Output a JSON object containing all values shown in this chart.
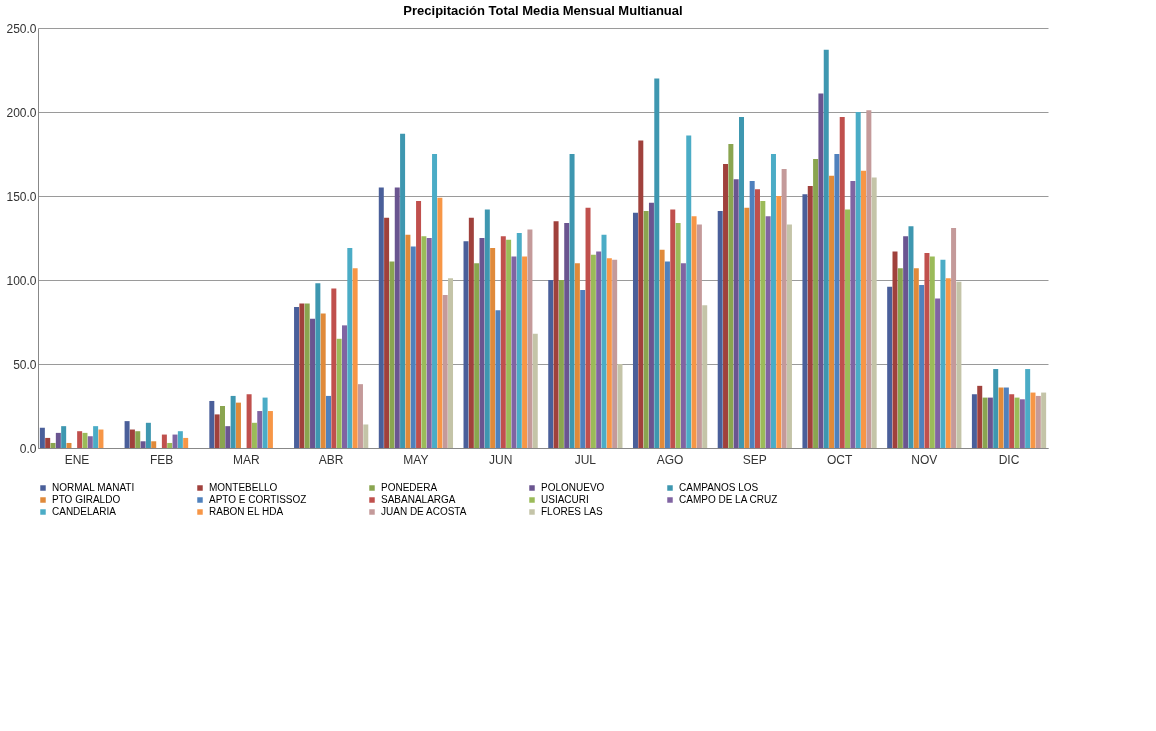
{
  "chart_data": {
    "type": "bar",
    "title": "Precipitación  Total  Media Mensual  Multianual",
    "categories": [
      "ENE",
      "FEB",
      "MAR",
      "ABR",
      "MAY",
      "JUN",
      "JUL",
      "AGO",
      "SEP",
      "OCT",
      "NOV",
      "DIC"
    ],
    "series": [
      {
        "name": "NORMAL MANATI",
        "color": "#4a5f9a",
        "values": [
          12,
          16,
          28,
          84,
          155,
          123,
          100,
          140,
          141,
          151,
          96,
          32
        ]
      },
      {
        "name": "MONTEBELLO",
        "color": "#a0413c",
        "values": [
          6,
          11,
          20,
          86,
          137,
          137,
          135,
          183,
          169,
          156,
          117,
          37
        ]
      },
      {
        "name": "PONEDERA",
        "color": "#8aa550",
        "values": [
          3,
          10,
          25,
          86,
          111,
          110,
          100,
          141,
          181,
          172,
          107,
          30
        ]
      },
      {
        "name": "POLONUEVO",
        "color": "#6a5590",
        "values": [
          9,
          4,
          13,
          77,
          155,
          125,
          134,
          146,
          160,
          211,
          126,
          30
        ]
      },
      {
        "name": "CAMPANOS LOS",
        "color": "#3e97b0",
        "values": [
          13,
          15,
          31,
          98,
          187,
          142,
          175,
          220,
          197,
          237,
          132,
          47
        ]
      },
      {
        "name": "PTO GIRALDO",
        "color": "#e08a3a",
        "values": [
          3,
          4,
          27,
          80,
          127,
          119,
          110,
          118,
          143,
          162,
          107,
          36
        ]
      },
      {
        "name": "APTO E CORTISSOZ",
        "color": "#4f81bd",
        "values": [
          0,
          0,
          0,
          31,
          120,
          82,
          94,
          111,
          159,
          175,
          97,
          36
        ]
      },
      {
        "name": "SABANALARGA",
        "color": "#c0504d",
        "values": [
          10,
          8,
          32,
          95,
          147,
          126,
          143,
          142,
          154,
          197,
          116,
          32
        ]
      },
      {
        "name": "USIACURI",
        "color": "#9bbb59",
        "values": [
          9,
          3,
          15,
          65,
          126,
          124,
          115,
          134,
          147,
          142,
          114,
          30
        ]
      },
      {
        "name": "CAMPO DE LA CRUZ",
        "color": "#8064a2",
        "values": [
          7,
          8,
          22,
          73,
          125,
          114,
          117,
          110,
          138,
          159,
          89,
          29
        ]
      },
      {
        "name": "CANDELARIA",
        "color": "#4bacc6",
        "values": [
          13,
          10,
          30,
          119,
          175,
          128,
          127,
          186,
          175,
          200,
          112,
          47
        ]
      },
      {
        "name": "RABON EL HDA",
        "color": "#f79646",
        "values": [
          11,
          6,
          22,
          107,
          149,
          114,
          113,
          138,
          150,
          165,
          101,
          33
        ]
      },
      {
        "name": "JUAN DE ACOSTA",
        "color": "#c49a9a",
        "values": [
          0,
          0,
          0,
          38,
          91,
          130,
          112,
          133,
          166,
          201,
          131,
          31
        ]
      },
      {
        "name": "FLORES LAS",
        "color": "#c4c4a8",
        "values": [
          0,
          0,
          0,
          14,
          101,
          68,
          50,
          85,
          133,
          161,
          99,
          33
        ]
      }
    ],
    "ylim": [
      0,
      250
    ],
    "yticks": [
      {
        "value": 0,
        "label": "0.0"
      },
      {
        "value": 50,
        "label": "50.0"
      },
      {
        "value": 100,
        "label": "100.0"
      },
      {
        "value": 150,
        "label": "150.0"
      },
      {
        "value": 200,
        "label": "200.0"
      },
      {
        "value": 250,
        "label": "250.0"
      }
    ],
    "grid": "y",
    "legend": "bottom"
  }
}
